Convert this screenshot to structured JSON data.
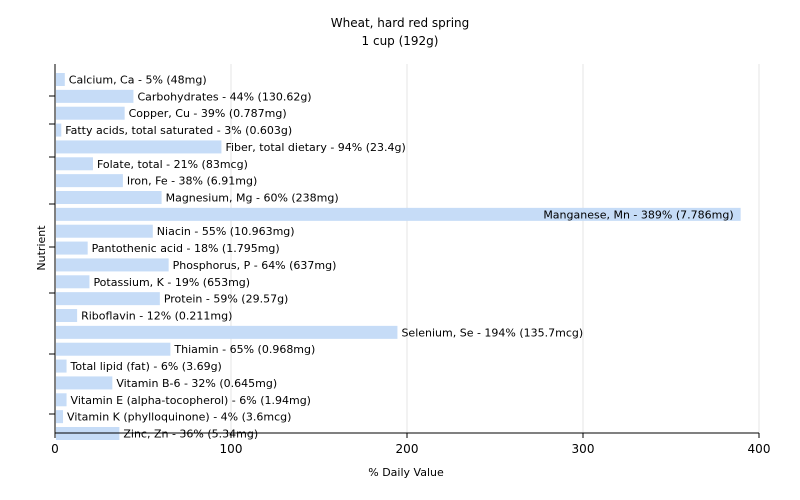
{
  "chart_data": {
    "type": "bar",
    "orientation": "horizontal",
    "title": "Wheat, hard red spring",
    "subtitle": "1 cup (192g)",
    "xlabel": "% Daily Value",
    "ylabel": "Nutrient",
    "xlim": [
      0,
      400
    ],
    "xticks": [
      0,
      100,
      200,
      300,
      400
    ],
    "grid": true,
    "bar_color": "#c6dcf7",
    "categories": [
      "Calcium, Ca",
      "Carbohydrates",
      "Copper, Cu",
      "Fatty acids, total saturated",
      "Fiber, total dietary",
      "Folate, total",
      "Iron, Fe",
      "Magnesium, Mg",
      "Manganese, Mn",
      "Niacin",
      "Pantothenic acid",
      "Phosphorus, P",
      "Potassium, K",
      "Protein",
      "Riboflavin",
      "Selenium, Se",
      "Thiamin",
      "Total lipid (fat)",
      "Vitamin B-6",
      "Vitamin E (alpha-tocopherol)",
      "Vitamin K (phylloquinone)",
      "Zinc, Zn"
    ],
    "values": [
      5,
      44,
      39,
      3,
      94,
      21,
      38,
      60,
      389,
      55,
      18,
      64,
      19,
      59,
      12,
      194,
      65,
      6,
      32,
      6,
      4,
      36
    ],
    "labels": [
      "Calcium, Ca - 5% (48mg)",
      "Carbohydrates - 44% (130.62g)",
      "Copper, Cu - 39% (0.787mg)",
      "Fatty acids, total saturated - 3% (0.603g)",
      "Fiber, total dietary - 94% (23.4g)",
      "Folate, total - 21% (83mcg)",
      "Iron, Fe - 38% (6.91mg)",
      "Magnesium, Mg - 60% (238mg)",
      "Manganese, Mn - 389% (7.786mg)",
      "Niacin - 55% (10.963mg)",
      "Pantothenic acid - 18% (1.795mg)",
      "Phosphorus, P - 64% (637mg)",
      "Potassium, K - 19% (653mg)",
      "Protein - 59% (29.57g)",
      "Riboflavin - 12% (0.211mg)",
      "Selenium, Se - 194% (135.7mcg)",
      "Thiamin - 65% (0.968mg)",
      "Total lipid (fat) - 6% (3.69g)",
      "Vitamin B-6 - 32% (0.645mg)",
      "Vitamin E (alpha-tocopherol) - 6% (1.94mg)",
      "Vitamin K (phylloquinone) - 4% (3.6mcg)",
      "Zinc, Zn - 36% (5.34mg)"
    ]
  }
}
